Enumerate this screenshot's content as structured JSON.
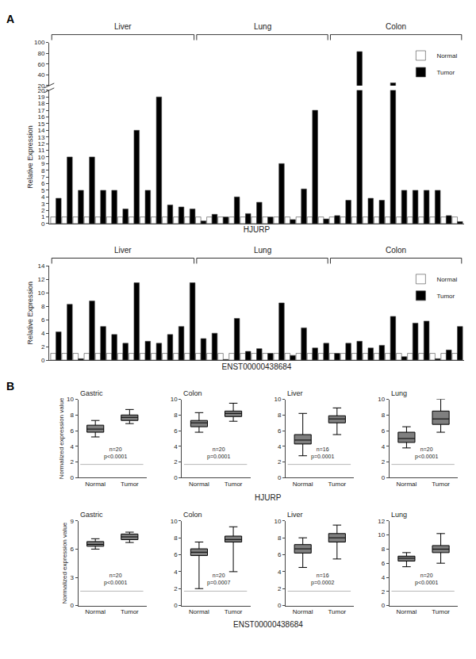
{
  "chart_data": [
    {
      "type": "bar",
      "annotations": [
        "A"
      ],
      "xlabel": "HJURP",
      "ylabel": "Relative Expression",
      "groups": [
        "Liver",
        "Lung",
        "Colon"
      ],
      "series": [
        {
          "name": "Normal",
          "color": "white",
          "values": [
            [
              1,
              1,
              1,
              1,
              1,
              1,
              1,
              1,
              1,
              1,
              1,
              1,
              1
            ],
            [
              1,
              1,
              1,
              1,
              1,
              1,
              1,
              1,
              1,
              1,
              1,
              1
            ],
            [
              1,
              1,
              1,
              1,
              1,
              1,
              1,
              1,
              1,
              1,
              1,
              1
            ]
          ]
        },
        {
          "name": "Tumor",
          "color": "black",
          "values": [
            [
              3.8,
              10,
              5,
              10,
              5,
              5,
              2.2,
              14,
              5,
              19,
              2.8,
              2.5,
              2.2
            ],
            [
              0.4,
              1.4,
              1.0,
              4.0,
              1.5,
              3.2,
              1.0,
              9,
              0.6,
              5.2,
              17,
              0.7
            ],
            [
              1.2,
              3.5,
              83,
              3.8,
              3.5,
              25,
              5,
              5,
              5,
              5,
              1.2,
              0.3
            ]
          ]
        }
      ],
      "ylim": [
        [
          0,
          20
        ],
        [
          20,
          100
        ]
      ],
      "yticks": [
        [
          0,
          1,
          2,
          3,
          4,
          5,
          6,
          7,
          8,
          9,
          10,
          11,
          12,
          13,
          14,
          15,
          16,
          17,
          18,
          19,
          20
        ],
        [
          20,
          40,
          60,
          80,
          100
        ]
      ],
      "legend": "upper right",
      "grid": false,
      "tick_labels": "y"
    },
    {
      "type": "bar",
      "xlabel": "ENST00000438684",
      "ylabel": "Relative Expression",
      "groups": [
        "Liver",
        "Lung",
        "Colon"
      ],
      "series": [
        {
          "name": "Normal",
          "color": "white",
          "values": [
            [
              1,
              1,
              1,
              1,
              1,
              1,
              1,
              1,
              1,
              1,
              1,
              1,
              1
            ],
            [
              1,
              1,
              1,
              1,
              1,
              1,
              1,
              1,
              1,
              1,
              1,
              1
            ],
            [
              1,
              1,
              1,
              1,
              1,
              1,
              1,
              1,
              1,
              1,
              1,
              1
            ]
          ]
        },
        {
          "name": "Tumor",
          "color": "black",
          "values": [
            [
              4.2,
              8.3,
              0.2,
              8.8,
              5.0,
              3.8,
              2.5,
              11.5,
              2.8,
              2.5,
              3.8,
              5.0,
              11.5
            ],
            [
              3.2,
              4.0,
              0.1,
              6.2,
              1.3,
              1.7,
              1.0,
              8.5,
              0.7,
              4.8,
              1.8,
              2.5
            ],
            [
              1.0,
              2.5,
              2.8,
              1.8,
              2.2,
              6.5,
              0.5,
              5.5,
              5.8,
              0.2,
              1.5,
              5.0
            ]
          ]
        }
      ],
      "ylim": [
        0,
        14
      ],
      "yticks": [
        0,
        2,
        4,
        6,
        8,
        10,
        12,
        14
      ],
      "legend": "upper right",
      "grid": false,
      "tick_labels": "y"
    },
    {
      "type": "box",
      "annotations": [
        "B"
      ],
      "xlabel": "HJURP",
      "ylabel": "Normalized expression value",
      "categories": [
        "Normal",
        "Tumor"
      ],
      "color": "black",
      "grid": false,
      "panels": [
        {
          "title": "Gastric",
          "q1": [
            5.8,
            7.3
          ],
          "median": [
            6.2,
            7.7
          ],
          "q3": [
            6.7,
            8.0
          ],
          "whisker_low": [
            5.2,
            6.9
          ],
          "whisker_high": [
            7.3,
            8.7
          ],
          "annotations": [
            "n=20",
            "p<0.0001"
          ],
          "ylim": [
            0,
            10
          ],
          "yticks": [
            0,
            2,
            4,
            6,
            8,
            10
          ]
        },
        {
          "title": "Colon",
          "q1": [
            6.5,
            7.8
          ],
          "median": [
            7.0,
            8.2
          ],
          "q3": [
            7.3,
            8.5
          ],
          "whisker_low": [
            5.8,
            7.2
          ],
          "whisker_high": [
            8.3,
            9.5
          ],
          "annotations": [
            "n=20",
            "p=0.0001"
          ],
          "ylim": [
            0,
            10
          ],
          "yticks": [
            0,
            2,
            4,
            6,
            8,
            10
          ]
        },
        {
          "title": "Liver",
          "q1": [
            4.3,
            7.0
          ],
          "median": [
            4.8,
            7.5
          ],
          "q3": [
            5.5,
            7.9
          ],
          "whisker_low": [
            2.8,
            5.5
          ],
          "whisker_high": [
            8.2,
            8.9
          ],
          "annotations": [
            "n=16",
            "p=0.0001"
          ],
          "ylim": [
            0,
            10
          ],
          "yticks": [
            0,
            2,
            4,
            6,
            8,
            10
          ]
        },
        {
          "title": "Lung",
          "q1": [
            4.5,
            6.8
          ],
          "median": [
            5.0,
            7.5
          ],
          "q3": [
            5.8,
            8.5
          ],
          "whisker_low": [
            3.8,
            5.8
          ],
          "whisker_high": [
            6.5,
            10.0
          ],
          "annotations": [
            "n=20",
            "p<0.0001"
          ],
          "ylim": [
            0,
            10
          ],
          "yticks": [
            0,
            2,
            4,
            6,
            8,
            10
          ]
        }
      ]
    },
    {
      "type": "box",
      "xlabel": "ENST00000438684",
      "ylabel": "Normalized expression value",
      "categories": [
        "Normal",
        "Tumor"
      ],
      "color": "black",
      "grid": false,
      "panels": [
        {
          "title": "Gastric",
          "q1": [
            6.3,
            7.0
          ],
          "median": [
            6.5,
            7.3
          ],
          "q3": [
            6.8,
            7.6
          ],
          "whisker_low": [
            6.0,
            6.7
          ],
          "whisker_high": [
            7.1,
            7.8
          ],
          "annotations": [
            "n=20",
            "p<0.0001"
          ],
          "ylim": [
            0,
            9
          ],
          "yticks": [
            0,
            3,
            6,
            9
          ]
        },
        {
          "title": "Colon",
          "q1": [
            5.9,
            7.5
          ],
          "median": [
            6.3,
            7.8
          ],
          "q3": [
            6.7,
            8.2
          ],
          "whisker_low": [
            2.0,
            4.0
          ],
          "whisker_high": [
            7.5,
            9.3
          ],
          "annotations": [
            "n=20",
            "p=0.0007"
          ],
          "ylim": [
            0,
            10
          ],
          "yticks": [
            0,
            2,
            4,
            6,
            8,
            10
          ]
        },
        {
          "title": "Liver",
          "q1": [
            6.2,
            7.5
          ],
          "median": [
            6.7,
            8.0
          ],
          "q3": [
            7.2,
            8.5
          ],
          "whisker_low": [
            4.5,
            5.5
          ],
          "whisker_high": [
            8.0,
            9.5
          ],
          "annotations": [
            "n=16",
            "p=0.0002"
          ],
          "ylim": [
            0,
            10
          ],
          "yticks": [
            0,
            2,
            4,
            6,
            8,
            10
          ]
        },
        {
          "title": "Lung",
          "q1": [
            6.3,
            7.5
          ],
          "median": [
            6.7,
            8.0
          ],
          "q3": [
            7.0,
            8.5
          ],
          "whisker_low": [
            5.5,
            6.0
          ],
          "whisker_high": [
            7.5,
            10.2
          ],
          "annotations": [
            "n=20",
            "p<0.0001"
          ],
          "ylim": [
            0,
            12
          ],
          "yticks": [
            0,
            2,
            4,
            6,
            8,
            10,
            12
          ]
        }
      ]
    }
  ]
}
